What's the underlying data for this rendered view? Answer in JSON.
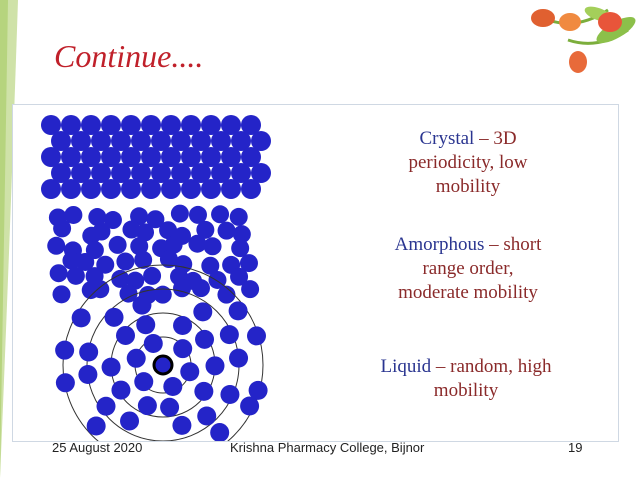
{
  "slide": {
    "title": "Continue....",
    "states": [
      {
        "term": "Crystal",
        "line1_rest": " – 3D",
        "line2": "periodicity, low",
        "line3": "mobility"
      },
      {
        "term": "Amorphous",
        "line1_rest": " – short",
        "line2": "range order,",
        "line3": "moderate mobility"
      },
      {
        "term": "Liquid",
        "line1_rest": " – random, high",
        "line2": "mobility",
        "line3": ""
      }
    ]
  },
  "footer": {
    "date": "25 August 2020",
    "college": "Krishna Pharmacy College, Bijnor",
    "page": "19"
  },
  "colors": {
    "particle": "#2424c8",
    "title": "#c0202a",
    "term": "#2a3590",
    "caption": "#8a2a2a"
  }
}
